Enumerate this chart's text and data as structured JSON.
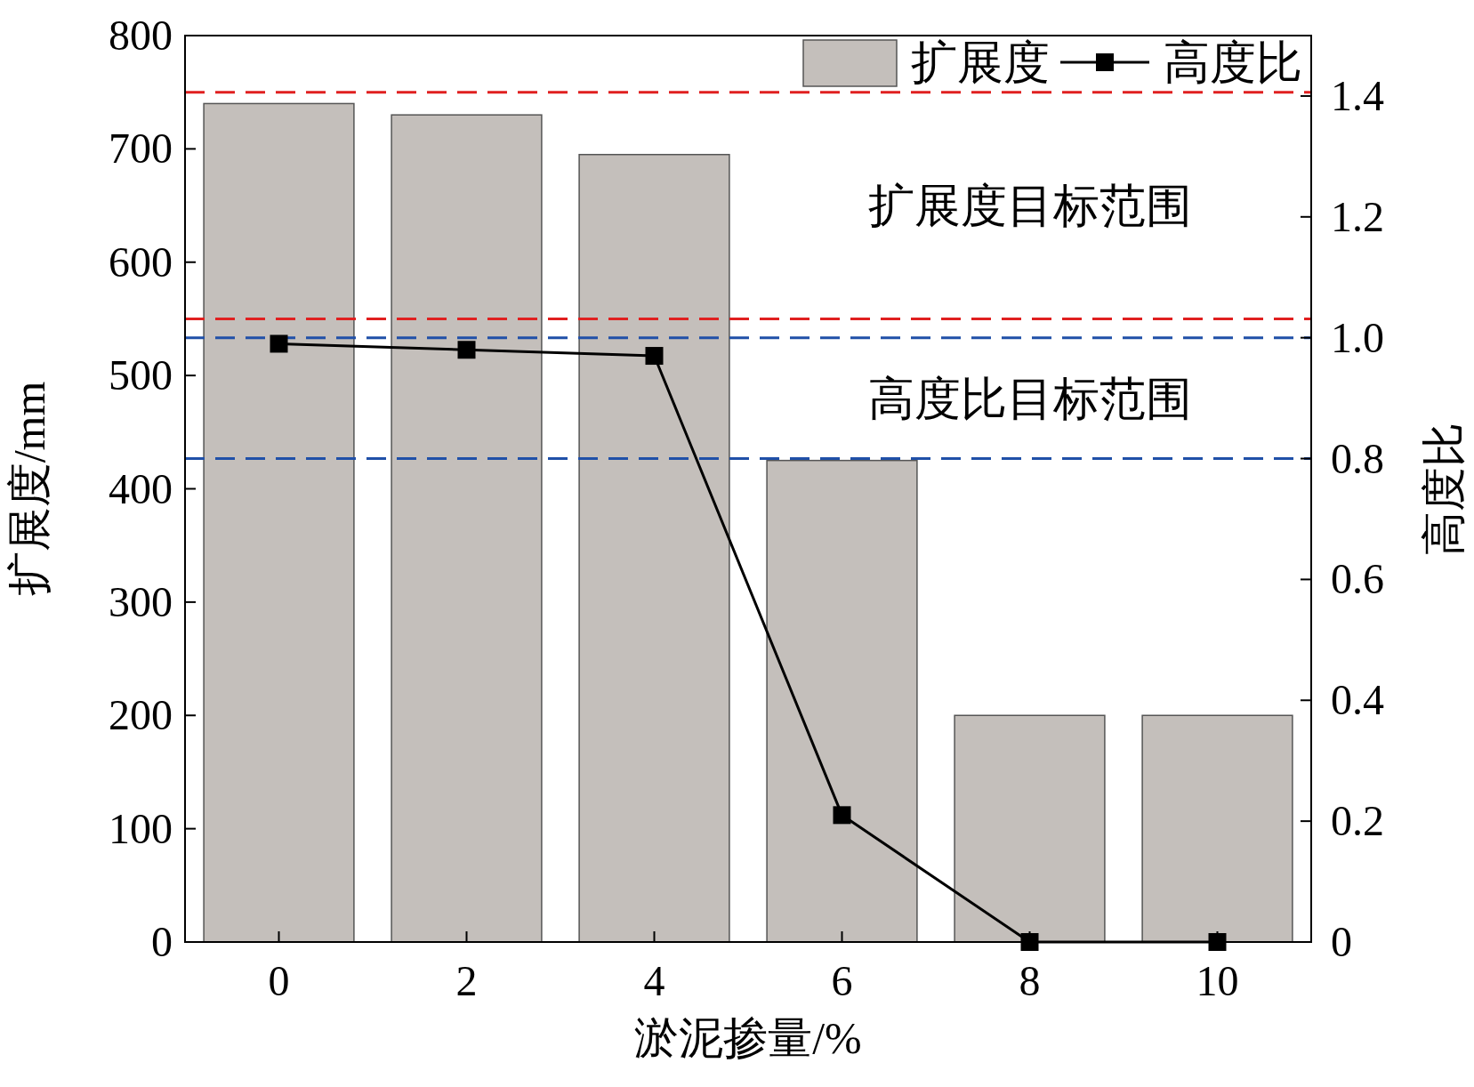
{
  "chart_data": {
    "type": "bar",
    "xlabel": "淤泥掺量/%",
    "ylabel": "扩展度/mm",
    "y2label": "高度比",
    "categories": [
      "0",
      "2",
      "4",
      "6",
      "8",
      "10"
    ],
    "series": [
      {
        "name": "扩展度",
        "color": "#c4bfbb",
        "values": [
          740,
          730,
          695,
          425,
          200,
          200
        ]
      },
      {
        "name": "高度比",
        "type": "line",
        "axis": "y2",
        "color": "#000000",
        "values": [
          0.99,
          0.98,
          0.97,
          0.21,
          0,
          0
        ]
      }
    ],
    "ylim": [
      0,
      800
    ],
    "yticks": [
      0,
      100,
      200,
      300,
      400,
      500,
      600,
      700,
      800
    ],
    "y2lim": [
      0,
      1.5
    ],
    "y2ticks": [
      0,
      0.2,
      0.4,
      0.6,
      0.8,
      {
        "value": 1,
        "label": "1.0"
      },
      1.2,
      1.4
    ],
    "ref_lines": [
      {
        "axis": "y",
        "value": 750,
        "color": "#e02020",
        "line_style": "dashed"
      },
      {
        "axis": "y",
        "value": 550,
        "color": "#e02020",
        "line_style": "dashed"
      },
      {
        "axis": "y2",
        "value": 1,
        "color": "#2050a8",
        "line_style": "dashed"
      },
      {
        "axis": "y2",
        "value": 0.8,
        "color": "#2050a8",
        "line_style": "dashed"
      }
    ],
    "annotations": [
      "扩展度目标范围",
      "高度比目标范围"
    ],
    "marker": "square",
    "legend": "top right",
    "grid": false
  }
}
